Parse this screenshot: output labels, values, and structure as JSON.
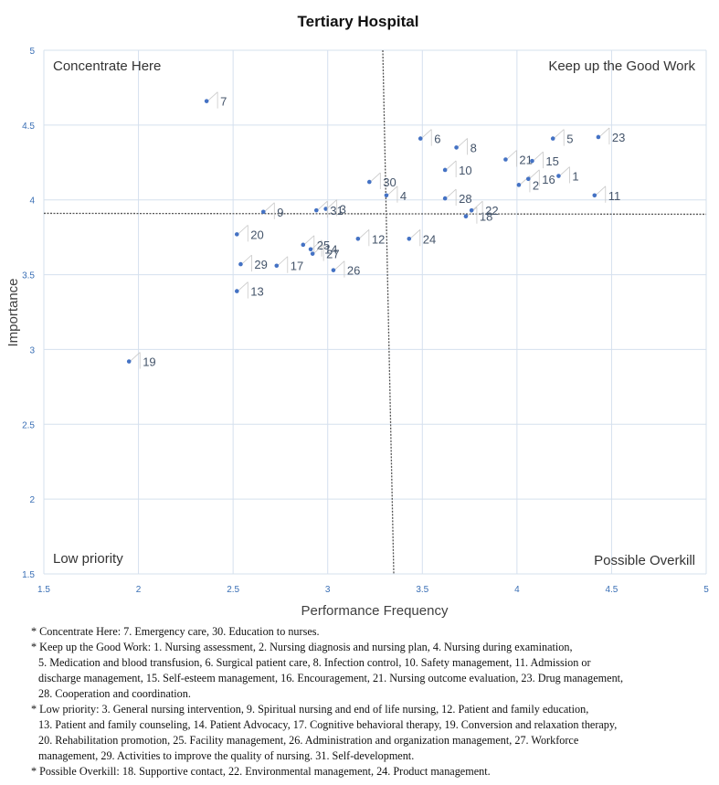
{
  "chart_data": {
    "type": "scatter",
    "title": "Tertiary Hospital",
    "xlabel": "Performance Frequency",
    "ylabel": "Importance",
    "xlim": [
      1.5,
      5
    ],
    "ylim": [
      1.5,
      5
    ],
    "xticks": [
      "1.5",
      "2",
      "2.5",
      "3",
      "3.5",
      "4",
      "4.5",
      "5"
    ],
    "yticks": [
      "1.5",
      "2",
      "2.5",
      "3",
      "3.5",
      "4",
      "4.5",
      "5"
    ],
    "grid": true,
    "reference_lines": {
      "x_mean": 3.32,
      "y_mean": 3.91
    },
    "quadrant_labels": {
      "top_left": "Concentrate Here",
      "top_right": "Keep up the Good Work",
      "bottom_left": "Low priority",
      "bottom_right": "Possible Overkill"
    },
    "points": [
      {
        "label": "1",
        "x": 4.22,
        "y": 4.16
      },
      {
        "label": "2",
        "x": 4.01,
        "y": 4.1
      },
      {
        "label": "3",
        "x": 2.99,
        "y": 3.94
      },
      {
        "label": "4",
        "x": 3.31,
        "y": 4.03
      },
      {
        "label": "5",
        "x": 4.19,
        "y": 4.41
      },
      {
        "label": "6",
        "x": 3.49,
        "y": 4.41
      },
      {
        "label": "7",
        "x": 2.36,
        "y": 4.66
      },
      {
        "label": "8",
        "x": 3.68,
        "y": 4.35
      },
      {
        "label": "9",
        "x": 2.66,
        "y": 3.92
      },
      {
        "label": "10",
        "x": 3.62,
        "y": 4.2
      },
      {
        "label": "11",
        "x": 4.41,
        "y": 4.03
      },
      {
        "label": "12",
        "x": 3.16,
        "y": 3.74
      },
      {
        "label": "13",
        "x": 2.52,
        "y": 3.39
      },
      {
        "label": "14",
        "x": 2.91,
        "y": 3.67
      },
      {
        "label": "15",
        "x": 4.08,
        "y": 4.26
      },
      {
        "label": "16",
        "x": 4.06,
        "y": 4.14
      },
      {
        "label": "17",
        "x": 2.73,
        "y": 3.56
      },
      {
        "label": "18",
        "x": 3.73,
        "y": 3.89
      },
      {
        "label": "19",
        "x": 1.95,
        "y": 2.92
      },
      {
        "label": "20",
        "x": 2.52,
        "y": 3.77
      },
      {
        "label": "21",
        "x": 3.94,
        "y": 4.27
      },
      {
        "label": "22",
        "x": 3.76,
        "y": 3.93
      },
      {
        "label": "23",
        "x": 4.43,
        "y": 4.42
      },
      {
        "label": "24",
        "x": 3.43,
        "y": 3.74
      },
      {
        "label": "25",
        "x": 2.87,
        "y": 3.7
      },
      {
        "label": "26",
        "x": 3.03,
        "y": 3.53
      },
      {
        "label": "27",
        "x": 2.92,
        "y": 3.64
      },
      {
        "label": "28",
        "x": 3.62,
        "y": 4.01
      },
      {
        "label": "29",
        "x": 2.54,
        "y": 3.57
      },
      {
        "label": "30",
        "x": 3.22,
        "y": 4.12
      },
      {
        "label": "31",
        "x": 2.94,
        "y": 3.93
      }
    ]
  },
  "notes": [
    {
      "lines": [
        "* Concentrate Here: 7. Emergency care, 30. Education to nurses."
      ]
    },
    {
      "lines": [
        "* Keep up the Good Work: 1. Nursing assessment, 2. Nursing diagnosis and nursing plan, 4. Nursing during examination,",
        "5. Medication and blood transfusion, 6. Surgical patient care, 8. Infection control, 10. Safety management, 11. Admission or",
        "discharge management, 15. Self-esteem management, 16. Encouragement, 21. Nursing outcome evaluation, 23. Drug management,",
        "28. Cooperation and coordination."
      ]
    },
    {
      "lines": [
        "* Low priority: 3. General nursing intervention, 9. Spiritual nursing and end of life nursing, 12. Patient and family education,",
        "13. Patient and family counseling, 14. Patient Advocacy, 17. Cognitive behavioral therapy, 19. Conversion and relaxation therapy,",
        "20. Rehabilitation promotion, 25. Facility management, 26. Administration and organization management, 27. Workforce",
        "management, 29. Activities to improve the quality of nursing. 31. Self-development."
      ]
    },
    {
      "lines": [
        "* Possible Overkill: 18. Supportive contact, 22. Environmental management, 24. Product management."
      ]
    }
  ],
  "colors": {
    "point": "#4472c4",
    "label": "#44546a",
    "tick": "#3a6fb5",
    "grid": "#d5e0ee",
    "axis_title": "#404040",
    "reference": "#555555"
  }
}
